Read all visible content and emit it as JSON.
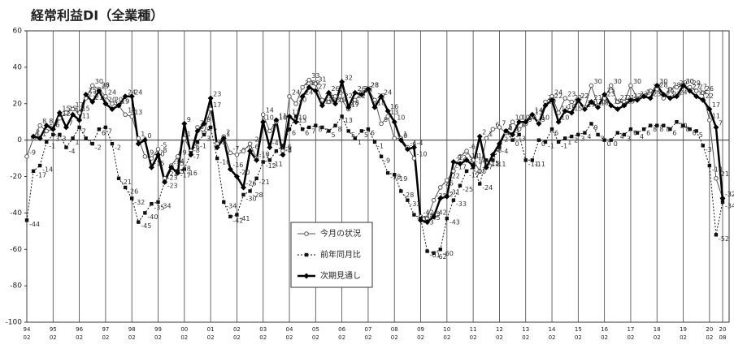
{
  "chart_data": {
    "type": "line",
    "title": "経常利益DI（全業種）",
    "categories": [
      "94\n02",
      null,
      null,
      null,
      "95\n02",
      null,
      null,
      null,
      "96\n02",
      null,
      null,
      null,
      "97\n02",
      null,
      null,
      null,
      "98\n02",
      null,
      null,
      null,
      "99\n02",
      null,
      null,
      null,
      "00\n02",
      null,
      null,
      null,
      "01\n02",
      null,
      null,
      null,
      "02\n02",
      null,
      null,
      null,
      "03\n02",
      null,
      null,
      null,
      "04\n02",
      null,
      null,
      null,
      "05\n02",
      null,
      null,
      null,
      "06\n02",
      null,
      null,
      null,
      "07\n02",
      null,
      null,
      null,
      "08\n02",
      null,
      null,
      null,
      "09\n02",
      null,
      null,
      null,
      "10\n02",
      null,
      null,
      null,
      "11\n02",
      null,
      null,
      null,
      "12\n02",
      null,
      null,
      null,
      "13\n02",
      null,
      null,
      null,
      "14\n02",
      null,
      null,
      null,
      "15\n02",
      null,
      null,
      null,
      "16\n02",
      null,
      null,
      null,
      "17\n02",
      null,
      null,
      null,
      "18\n02",
      null,
      null,
      null,
      "19\n02",
      null,
      null,
      null,
      "20\n02",
      null,
      "20\n08"
    ],
    "series": [
      {
        "name": "今月の状況",
        "color": "#555555",
        "marker": "circle",
        "dash": false,
        "width": 1,
        "values": [
          -9,
          1,
          8,
          5,
          6,
          12,
          15,
          17,
          15,
          23,
          30,
          28,
          24,
          20,
          19,
          14,
          13,
          1,
          -9,
          -10,
          -5,
          -21,
          -14,
          -9,
          1,
          -6,
          7,
          4,
          17,
          -2,
          2,
          -7,
          -8,
          -6,
          -2,
          -10,
          14,
          5,
          10,
          -6,
          24,
          20,
          29,
          33,
          31,
          22,
          21,
          24,
          22,
          17,
          22,
          26,
          28,
          22,
          9,
          13,
          1,
          1,
          -4,
          -10,
          -42,
          -43,
          -33,
          -26,
          -22,
          -17,
          -9,
          -6,
          -11,
          -17,
          1,
          6,
          7,
          4,
          10,
          6,
          9,
          13,
          10,
          21,
          24,
          15,
          23,
          21,
          22,
          18,
          30,
          19,
          23,
          30,
          21,
          21,
          30,
          23,
          24,
          27,
          28,
          23,
          28,
          29,
          30,
          29,
          27,
          26,
          11,
          -21,
          -32
        ]
      },
      {
        "name": "前年同月比",
        "color": "#111111",
        "marker": "square",
        "dash": true,
        "width": 1,
        "values": [
          -44,
          -17,
          -14,
          -1,
          3,
          3,
          -4,
          1,
          7,
          1,
          -2,
          6,
          7,
          -2,
          -21,
          -26,
          -32,
          -45,
          -40,
          -35,
          -34,
          -23,
          -15,
          -17,
          -16,
          -7,
          -1,
          3,
          7,
          -10,
          -34,
          -42,
          -41,
          -30,
          -28,
          -21,
          -12,
          -11,
          -6,
          -3,
          6,
          13,
          6,
          7,
          8,
          7,
          5,
          8,
          13,
          5,
          1,
          5,
          6,
          -1,
          -9,
          -18,
          -19,
          -28,
          -33,
          -41,
          -43,
          -61,
          -62,
          -60,
          -43,
          -33,
          -25,
          -17,
          -15,
          -24,
          -11,
          -11,
          -4,
          5,
          0,
          3,
          -11,
          -11,
          0,
          -1,
          6,
          -1,
          1,
          2,
          3,
          4,
          9,
          3,
          0,
          0,
          4,
          3,
          6,
          4,
          6,
          8,
          8,
          8,
          6,
          10,
          8,
          6,
          5,
          -3,
          -14,
          -52,
          -34
        ]
      },
      {
        "name": "次期見通し",
        "color": "#000000",
        "marker": "diamond",
        "dash": false,
        "width": 2.5,
        "values": [
          null,
          2,
          1,
          8,
          6,
          15,
          7,
          14,
          11,
          25,
          21,
          27,
          20,
          17,
          19,
          24,
          24,
          -2,
          0,
          -15,
          -8,
          -23,
          -15,
          -18,
          9,
          -8,
          5,
          9,
          23,
          -4,
          1,
          -16,
          -20,
          -26,
          -6,
          -11,
          10,
          -4,
          11,
          -8,
          13,
          10,
          24,
          29,
          27,
          19,
          26,
          20,
          32,
          18,
          26,
          25,
          28,
          18,
          24,
          16,
          10,
          0,
          -5,
          -4,
          -44,
          -45,
          -42,
          -32,
          -31,
          -12,
          -13,
          -11,
          -14,
          2,
          -15,
          -8,
          -2,
          5,
          3,
          10,
          10,
          14,
          9,
          19,
          22,
          10,
          16,
          15,
          22,
          17,
          21,
          18,
          25,
          19,
          17,
          19,
          22,
          22,
          24,
          23,
          30,
          25,
          23,
          24,
          30,
          27,
          24,
          22,
          17,
          7,
          -32
        ]
      }
    ],
    "ylim": [
      -100,
      60
    ],
    "yticks": [
      -100,
      -80,
      -60,
      -40,
      -20,
      0,
      20,
      40,
      60
    ],
    "grid": false,
    "xgrid": true
  }
}
